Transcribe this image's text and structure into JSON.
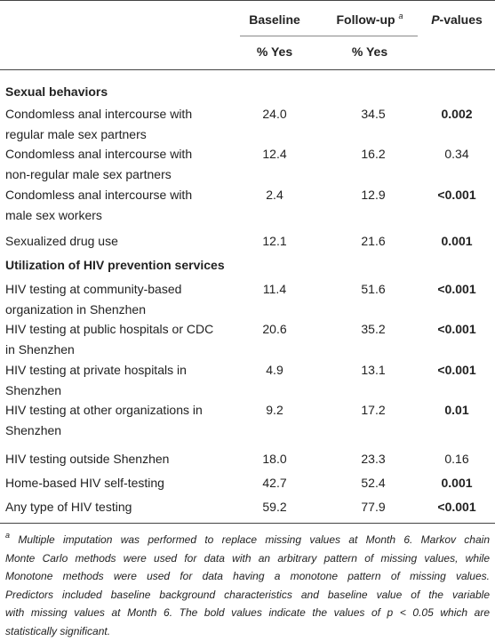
{
  "header": {
    "baseline": "Baseline",
    "followup": "Follow-up",
    "followup_note": "a",
    "p_values": "P-values",
    "baseline_unit": "% Yes",
    "followup_unit": "% Yes"
  },
  "sections": [
    {
      "title": "Sexual behaviors",
      "rows": [
        {
          "label": [
            "Condomless anal intercourse with",
            "regular male sex partners"
          ],
          "baseline": "24.0",
          "followup": "34.5",
          "p": "0.002",
          "p_bold": true
        },
        {
          "label": [
            "Condomless anal intercourse with",
            "non-regular male sex partners"
          ],
          "baseline": "12.4",
          "followup": "16.2",
          "p": "0.34",
          "p_bold": false
        },
        {
          "label": [
            "Condomless anal intercourse with",
            "male sex workers"
          ],
          "baseline": "2.4",
          "followup": "12.9",
          "p": "<0.001",
          "p_bold": true
        },
        {
          "label": [
            "Sexualized drug use"
          ],
          "baseline": "12.1",
          "followup": "21.6",
          "p": "0.001",
          "p_bold": true
        }
      ]
    },
    {
      "title": "Utilization of HIV prevention services",
      "rows": [
        {
          "label": [
            "HIV testing at community-based",
            "organization in Shenzhen"
          ],
          "baseline": "11.4",
          "followup": "51.6",
          "p": "<0.001",
          "p_bold": true
        },
        {
          "label": [
            "HIV testing at public hospitals or CDC",
            "in Shenzhen"
          ],
          "baseline": "20.6",
          "followup": "35.2",
          "p": "<0.001",
          "p_bold": true
        },
        {
          "label": [
            "HIV testing at private hospitals in",
            "Shenzhen"
          ],
          "baseline": "4.9",
          "followup": "13.1",
          "p": "<0.001",
          "p_bold": true
        },
        {
          "label": [
            "HIV testing at other organizations in",
            "Shenzhen"
          ],
          "baseline": "9.2",
          "followup": "17.2",
          "p": "0.01",
          "p_bold": true
        },
        {
          "label": [
            "HIV testing outside Shenzhen"
          ],
          "baseline": "18.0",
          "followup": "23.3",
          "p": "0.16",
          "p_bold": false
        },
        {
          "label": [
            "Home-based HIV self-testing"
          ],
          "baseline": "42.7",
          "followup": "52.4",
          "p": "0.001",
          "p_bold": true
        },
        {
          "label": [
            "Any type of HIV testing"
          ],
          "baseline": "59.2",
          "followup": "77.9",
          "p": "<0.001",
          "p_bold": true
        }
      ]
    }
  ],
  "footnote": {
    "marker": "a",
    "lines": [
      "Multiple imputation was performed to replace missing values at Month 6. Markov chain",
      "Monte Carlo methods were used for data with an arbitrary pattern of missing values, while",
      "Monotone methods were used for data having a monotone pattern of missing values.",
      "Predictors included baseline background characteristics and baseline value of the variable",
      "with missing values at Month 6. The bold values indicate the values of p < 0.05 which are",
      "statistically significant."
    ]
  }
}
